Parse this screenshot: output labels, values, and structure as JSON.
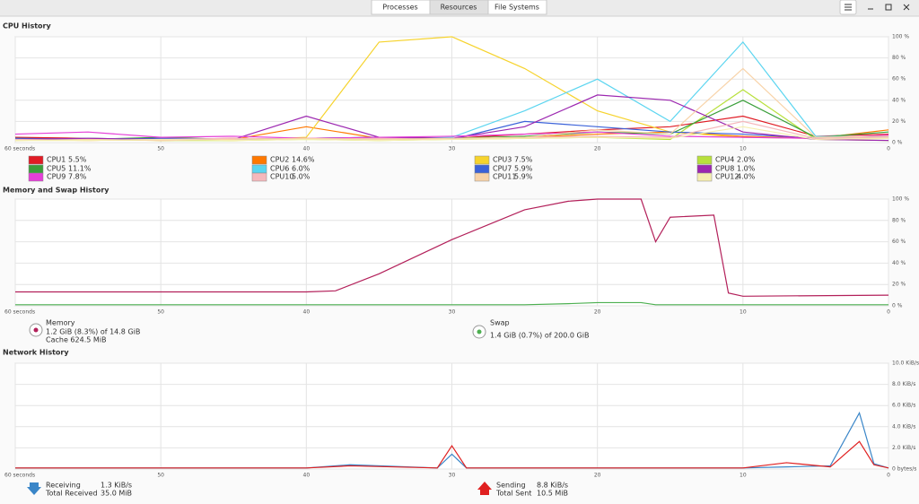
{
  "tabs": [
    "Processes",
    "Resources",
    "File Systems"
  ],
  "cpu": {
    "title": "CPU History",
    "xlim": [
      60,
      0
    ],
    "ylim": [
      0,
      100
    ],
    "xticks": [
      {
        "value": 60,
        "label": "60 seconds"
      },
      50,
      40,
      30,
      20,
      10,
      0
    ],
    "yticks": [
      {
        "value": 0,
        "label": "0 %"
      },
      {
        "value": 20,
        "label": "20 %"
      },
      {
        "value": 40,
        "label": "40 %"
      },
      {
        "value": 60,
        "label": "60 %"
      },
      {
        "value": 80,
        "label": "80 %"
      },
      {
        "value": 100,
        "label": "100 %"
      }
    ],
    "x": [
      60,
      55,
      50,
      45,
      40,
      35,
      30,
      25,
      20,
      15,
      10,
      5,
      0
    ],
    "series": [
      {
        "name": "CPU1",
        "usage": "5.5%",
        "color": "#e01b24",
        "values": [
          5,
          4,
          3,
          4,
          3,
          5,
          4,
          8,
          12,
          15,
          25,
          6,
          8
        ]
      },
      {
        "name": "CPU2",
        "usage": "14.6%",
        "color": "#ff7800",
        "values": [
          3,
          4,
          2,
          3,
          15,
          4,
          3,
          5,
          8,
          10,
          6,
          4,
          12
        ]
      },
      {
        "name": "CPU3",
        "usage": "7.5%",
        "color": "#f6d32d",
        "values": [
          3,
          2,
          3,
          2,
          5,
          95,
          100,
          70,
          30,
          10,
          5,
          4,
          6
        ]
      },
      {
        "name": "CPU4",
        "usage": "2.0%",
        "color": "#b8e03c",
        "values": [
          2,
          3,
          2,
          2,
          3,
          2,
          3,
          4,
          5,
          3,
          50,
          3,
          2
        ]
      },
      {
        "name": "CPU5",
        "usage": "11.1%",
        "color": "#3a9f3a",
        "values": [
          4,
          3,
          5,
          3,
          4,
          5,
          4,
          6,
          10,
          8,
          40,
          5,
          10
        ]
      },
      {
        "name": "CPU6",
        "usage": "6.0%",
        "color": "#5bd5f0",
        "values": [
          3,
          4,
          3,
          3,
          4,
          3,
          5,
          30,
          60,
          20,
          95,
          6,
          5
        ]
      },
      {
        "name": "CPU7",
        "usage": "5.9%",
        "color": "#3b62d9",
        "values": [
          4,
          3,
          4,
          3,
          4,
          5,
          3,
          20,
          15,
          10,
          8,
          4,
          6
        ]
      },
      {
        "name": "CPU8",
        "usage": "1.0%",
        "color": "#9c27b0",
        "values": [
          3,
          4,
          3,
          3,
          25,
          5,
          4,
          15,
          45,
          40,
          10,
          3,
          2
        ]
      },
      {
        "name": "CPU9",
        "usage": "7.8%",
        "color": "#e53fd8",
        "values": [
          8,
          10,
          5,
          6,
          4,
          5,
          6,
          8,
          10,
          6,
          5,
          4,
          7
        ]
      },
      {
        "name": "CPU10",
        "usage": "5.0%",
        "color": "#f5b8bc",
        "values": [
          3,
          2,
          3,
          4,
          3,
          4,
          3,
          5,
          6,
          5,
          20,
          4,
          5
        ]
      },
      {
        "name": "CPU11",
        "usage": "5.9%",
        "color": "#f8d3a8",
        "values": [
          2,
          3,
          2,
          3,
          4,
          3,
          4,
          5,
          12,
          8,
          70,
          5,
          6
        ]
      },
      {
        "name": "CPU12",
        "usage": "4.0%",
        "color": "#f5eeb0",
        "values": [
          2,
          2,
          3,
          2,
          3,
          2,
          3,
          4,
          5,
          4,
          15,
          3,
          4
        ]
      }
    ]
  },
  "memory": {
    "title": "Memory and Swap History",
    "xlim": [
      60,
      0
    ],
    "ylim": [
      0,
      100
    ],
    "xticks": [
      {
        "value": 60,
        "label": "60 seconds"
      },
      50,
      40,
      30,
      20,
      10,
      0
    ],
    "yticks": [
      {
        "value": 0,
        "label": "0 %"
      },
      {
        "value": 20,
        "label": "20 %"
      },
      {
        "value": 40,
        "label": "40 %"
      },
      {
        "value": 60,
        "label": "60 %"
      },
      {
        "value": 80,
        "label": "80 %"
      },
      {
        "value": 100,
        "label": "100 %"
      }
    ],
    "x": [
      60,
      40,
      38,
      35,
      30,
      25,
      22,
      20,
      17,
      16,
      15,
      12,
      11,
      10,
      0
    ],
    "series": [
      {
        "name": "Memory",
        "color": "#b3205a",
        "values": [
          13,
          13,
          14,
          30,
          62,
          90,
          98,
          100,
          100,
          60,
          83,
          85,
          12,
          9,
          10
        ],
        "lines": [
          "1.2 GiB (8.3%) of 14.8 GiB",
          "Cache 624.5 MiB"
        ]
      },
      {
        "name": "Swap",
        "color": "#4caf50",
        "values": [
          1,
          1,
          1,
          1,
          1,
          1,
          2,
          3,
          3,
          1,
          1,
          1,
          1,
          1,
          1
        ],
        "lines": [
          "1.4 GiB (0.7%) of 200.0 GiB"
        ]
      }
    ]
  },
  "network": {
    "title": "Network History",
    "xlim": [
      60,
      0
    ],
    "ylim": [
      0,
      10
    ],
    "xticks": [
      {
        "value": 60,
        "label": "60 seconds"
      },
      50,
      40,
      30,
      20,
      10,
      0
    ],
    "yticks": [
      {
        "value": 0,
        "label": "0 bytes/s"
      },
      {
        "value": 2,
        "label": "2.0 KiB/s"
      },
      {
        "value": 4,
        "label": "4.0 KiB/s"
      },
      {
        "value": 6,
        "label": "6.0 KiB/s"
      },
      {
        "value": 8,
        "label": "8.0 KiB/s"
      },
      {
        "value": 10,
        "label": "10.0 KiB/s"
      }
    ],
    "x": [
      60,
      50,
      40,
      37,
      31,
      30,
      29,
      25,
      20,
      10,
      7,
      4,
      2,
      1,
      0
    ],
    "series": [
      {
        "name": "Receiving",
        "color": "#3a86c8",
        "values": [
          0.1,
          0.1,
          0.1,
          0.4,
          0.1,
          1.4,
          0.1,
          0.1,
          0.1,
          0.1,
          0.2,
          0.3,
          5.3,
          0.5,
          0.1
        ],
        "rate": "1.3 KiB/s",
        "total_name": "Total Received",
        "total": "35.0 MiB"
      },
      {
        "name": "Sending",
        "color": "#e02020",
        "values": [
          0.1,
          0.1,
          0.1,
          0.3,
          0.1,
          2.2,
          0.1,
          0.1,
          0.1,
          0.1,
          0.6,
          0.2,
          2.6,
          0.4,
          0.1
        ],
        "rate": "8.8 KiB/s",
        "total_name": "Total Sent",
        "total": "10.5 MiB"
      }
    ]
  }
}
